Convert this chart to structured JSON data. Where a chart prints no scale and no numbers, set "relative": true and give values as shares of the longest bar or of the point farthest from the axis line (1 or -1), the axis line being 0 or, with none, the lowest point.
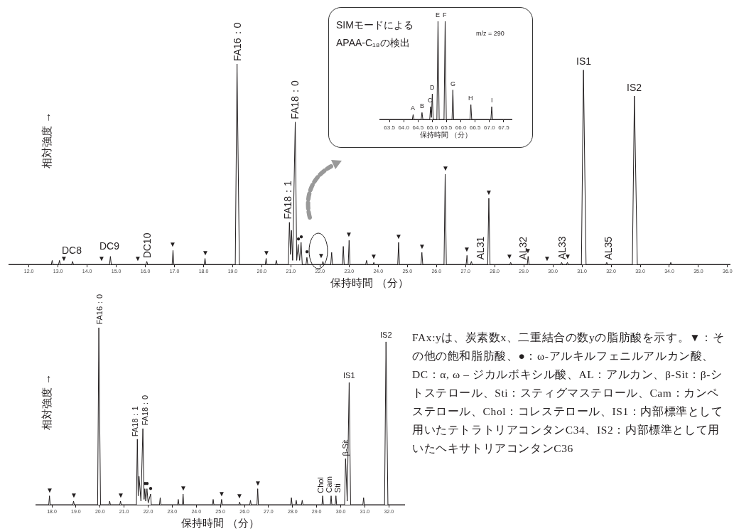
{
  "chart_data": [
    {
      "type": "line",
      "relative": true,
      "ylabel": "相対強度 →",
      "xlabel": "保持時間 （分）",
      "color": "#231f20",
      "xlim": [
        11.3,
        36.1
      ],
      "xticks": [
        {
          "value": 12,
          "label": "12.0"
        },
        {
          "value": 13,
          "label": "13.0"
        },
        {
          "value": 14,
          "label": "14.0"
        },
        {
          "value": 15,
          "label": "15.0"
        },
        {
          "value": 16,
          "label": "16.0"
        },
        {
          "value": 17,
          "label": "17.0"
        },
        {
          "value": 18,
          "label": "18.0"
        },
        {
          "value": 19,
          "label": "19.0"
        },
        {
          "value": 20,
          "label": "20.0"
        },
        {
          "value": 21,
          "label": "21.0"
        },
        {
          "value": 22,
          "label": "22.0"
        },
        {
          "value": 23,
          "label": "23.0"
        },
        {
          "value": 24,
          "label": "24.0"
        },
        {
          "value": 25,
          "label": "25.0"
        },
        {
          "value": 26,
          "label": "26.0"
        },
        {
          "value": 27,
          "label": "27.0"
        },
        {
          "value": 28,
          "label": "28.0"
        },
        {
          "value": 29,
          "label": "29.0"
        },
        {
          "value": 30,
          "label": "30.0"
        },
        {
          "value": 31,
          "label": "31.0"
        },
        {
          "value": 32,
          "label": "32.0"
        },
        {
          "value": 33,
          "label": "33.0"
        },
        {
          "value": 34,
          "label": "34.0"
        },
        {
          "value": 35,
          "label": "35.0"
        },
        {
          "value": 36,
          "label": "36.0"
        }
      ],
      "x": [
        11.3,
        12.77,
        12.8,
        12.83,
        13.02,
        13.05,
        13.08,
        13.47,
        13.5,
        13.53,
        14.77,
        14.8,
        14.83,
        16.02,
        16.05,
        16.08,
        16.92,
        16.95,
        16.98,
        18.02,
        18.05,
        18.08,
        19.09,
        19.15,
        19.23,
        20.12,
        20.15,
        20.18,
        20.47,
        20.5,
        20.53,
        20.91,
        20.95,
        20.985,
        21.02,
        21.06,
        21.15,
        21.2,
        21.25,
        21.3,
        21.35,
        21.39,
        21.52,
        21.55,
        21.58,
        22.07,
        22.1,
        22.13,
        22.37,
        22.4,
        22.43,
        22.77,
        22.8,
        22.83,
        22.97,
        23.0,
        23.03,
        23.57,
        23.6,
        23.63,
        23.82,
        23.85,
        23.88,
        24.67,
        24.7,
        24.73,
        25.47,
        25.5,
        25.53,
        26.26,
        26.3,
        26.34,
        27.02,
        27.05,
        27.08,
        27.17,
        27.2,
        27.23,
        27.76,
        27.8,
        27.84,
        28.52,
        28.55,
        28.58,
        29.12,
        29.15,
        29.18,
        30.27,
        30.3,
        30.33,
        30.47,
        30.5,
        30.53,
        30.98,
        31.05,
        31.14,
        31.82,
        31.85,
        31.88,
        32.73,
        32.8,
        32.9,
        34.02,
        34.05,
        34.08,
        36.1
      ],
      "values": [
        0,
        0,
        0.02,
        0,
        0,
        0.02,
        0,
        0,
        0.015,
        0,
        0,
        0.04,
        0,
        0,
        0.015,
        0,
        0,
        0.07,
        0,
        0,
        0.03,
        0,
        0,
        1,
        0,
        0,
        0.03,
        0,
        0,
        0.02,
        0,
        0,
        0.21,
        0.05,
        0.17,
        0.02,
        0.71,
        0.02,
        0.1,
        0.02,
        0.11,
        0,
        0,
        0.035,
        0,
        0,
        0.015,
        0,
        0,
        0.06,
        0,
        0,
        0.09,
        0,
        0,
        0.12,
        0,
        0,
        0.02,
        0,
        0,
        0.01,
        0,
        0,
        0.11,
        0,
        0,
        0.06,
        0,
        0,
        0.45,
        0,
        0,
        0.045,
        0,
        0,
        0.015,
        0,
        0,
        0.33,
        0,
        0,
        0.01,
        0,
        0,
        0.04,
        0,
        0,
        0.01,
        0,
        0,
        0.01,
        0,
        0,
        0.97,
        0,
        0,
        0.01,
        0,
        0,
        0.84,
        0,
        0,
        0.01,
        0,
        0
      ],
      "annotations": [
        {
          "text": "FA16：0",
          "x": 19.15,
          "y": 1
        },
        {
          "text": "FA18：1",
          "x": 20.9,
          "y": 0.21
        },
        {
          "text": "FA18：0",
          "x": 21.15,
          "y": 0.71
        },
        {
          "text": "DC8",
          "x": 13.47,
          "y": 0.03
        },
        {
          "text": "DC9",
          "x": 14.77,
          "y": 0.05
        },
        {
          "text": "DC10",
          "x": 16.05,
          "y": 0.015
        },
        {
          "text": "AL31",
          "x": 27.5,
          "y": 0.01
        },
        {
          "text": "AL32",
          "x": 28.97,
          "y": 0.01
        },
        {
          "text": "AL33",
          "x": 30.3,
          "y": 0.01
        },
        {
          "text": "AL35",
          "x": 31.9,
          "y": 0.01
        },
        {
          "text": "IS1",
          "x": 31.05,
          "y": 0.97
        },
        {
          "text": "IS2",
          "x": 32.8,
          "y": 0.84
        },
        {
          "text": "▼",
          "x": 13.2,
          "y": 0
        },
        {
          "text": "▼",
          "x": 14.5,
          "y": 0
        },
        {
          "text": "▼",
          "x": 15.75,
          "y": 0
        },
        {
          "text": "▼",
          "x": 16.95,
          "y": 0.07
        },
        {
          "text": "▼",
          "x": 18.05,
          "y": 0.03
        },
        {
          "text": "▼",
          "x": 20.15,
          "y": 0.03
        },
        {
          "text": "▼",
          "x": 22.05,
          "y": 0.015
        },
        {
          "text": "▼",
          "x": 23.0,
          "y": 0.12
        },
        {
          "text": "▼",
          "x": 23.85,
          "y": 0.01
        },
        {
          "text": "▼",
          "x": 24.7,
          "y": 0.11
        },
        {
          "text": "▼",
          "x": 25.5,
          "y": 0.06
        },
        {
          "text": "▼",
          "x": 26.3,
          "y": 0.45
        },
        {
          "text": "▼",
          "x": 27.05,
          "y": 0.045
        },
        {
          "text": "▼",
          "x": 27.8,
          "y": 0.33
        },
        {
          "text": "▼",
          "x": 28.5,
          "y": 0.01
        },
        {
          "text": "▼",
          "x": 29.15,
          "y": 0.04
        },
        {
          "text": "▼",
          "x": 29.8,
          "y": 0
        },
        {
          "text": "▼",
          "x": 30.5,
          "y": 0.01
        },
        {
          "text": "●",
          "x": 21.25,
          "y": 0.1
        },
        {
          "text": "●",
          "x": 21.35,
          "y": 0.11
        },
        {
          "text": "●",
          "x": 21.55,
          "y": 0.035
        }
      ]
    },
    {
      "type": "line",
      "relative": true,
      "title": "SIMモードによるAPAA-C₁₈の検出",
      "xlabel": "保持時間 （分）",
      "color": "#231f20",
      "xlim": [
        63.15,
        67.8
      ],
      "xticks": [
        {
          "value": 63.5,
          "label": "63.5"
        },
        {
          "value": 64,
          "label": "64.0"
        },
        {
          "value": 64.5,
          "label": "64.5"
        },
        {
          "value": 65,
          "label": "65.0"
        },
        {
          "value": 65.5,
          "label": "65.5"
        },
        {
          "value": 66,
          "label": "66.0"
        },
        {
          "value": 66.5,
          "label": "66.5"
        },
        {
          "value": 67,
          "label": "67.0"
        },
        {
          "value": 67.5,
          "label": "67.5"
        }
      ],
      "x": [
        63.15,
        64.3,
        64.33,
        64.36,
        64.61,
        64.64,
        64.67,
        64.91,
        64.94,
        64.97,
        65.0,
        65.03,
        65.16,
        65.2,
        65.24,
        65.41,
        65.45,
        65.49,
        65.69,
        65.72,
        65.75,
        66.32,
        66.35,
        66.38,
        67.05,
        67.08,
        67.11,
        67.8
      ],
      "values": [
        0,
        0,
        0.05,
        0,
        0,
        0.07,
        0,
        0,
        0.13,
        0.02,
        0.26,
        0,
        0,
        1,
        0,
        0,
        1,
        0,
        0,
        0.3,
        0,
        0,
        0.15,
        0,
        0,
        0.13,
        0,
        0
      ],
      "annotations": [
        "m/z = 290",
        {
          "text": "A",
          "x": 64.33,
          "y": 0.05
        },
        {
          "text": "B",
          "x": 64.64,
          "y": 0.07
        },
        {
          "text": "C",
          "x": 64.92,
          "y": 0.13
        },
        {
          "text": "D",
          "x": 65.0,
          "y": 0.26
        },
        {
          "text": "E",
          "x": 65.2,
          "y": 1
        },
        {
          "text": "F",
          "x": 65.45,
          "y": 1
        },
        {
          "text": "G",
          "x": 65.72,
          "y": 0.3
        },
        {
          "text": "H",
          "x": 66.35,
          "y": 0.15
        },
        {
          "text": "I",
          "x": 67.08,
          "y": 0.13
        }
      ]
    },
    {
      "type": "line",
      "relative": true,
      "ylabel": "相対強度 →",
      "xlabel": "保持時間 （分）",
      "color": "#231f20",
      "xlim": [
        17.32,
        32.67
      ],
      "xticks": [
        {
          "value": 18,
          "label": "18.0"
        },
        {
          "value": 19,
          "label": "19.0"
        },
        {
          "value": 20,
          "label": "20.0"
        },
        {
          "value": 21,
          "label": "21.0"
        },
        {
          "value": 22,
          "label": "22.0"
        },
        {
          "value": 23,
          "label": "23.0"
        },
        {
          "value": 24,
          "label": "24.0"
        },
        {
          "value": 25,
          "label": "25.0"
        },
        {
          "value": 26,
          "label": "26.0"
        },
        {
          "value": 27,
          "label": "27.0"
        },
        {
          "value": 28,
          "label": "28.0"
        },
        {
          "value": 29,
          "label": "29.0"
        },
        {
          "value": 30,
          "label": "30.0"
        },
        {
          "value": 31,
          "label": "31.0"
        },
        {
          "value": 32,
          "label": "32.0"
        }
      ],
      "x": [
        17.32,
        17.87,
        17.9,
        17.93,
        18.87,
        18.9,
        18.93,
        19.9,
        19.95,
        20.02,
        20.37,
        20.4,
        20.43,
        20.82,
        20.85,
        20.88,
        21.51,
        21.55,
        21.585,
        21.62,
        21.7,
        21.78,
        21.83,
        21.86,
        21.9,
        21.95,
        22.0,
        22.1,
        22.13,
        22.47,
        22.5,
        22.53,
        23.22,
        23.25,
        23.28,
        23.42,
        23.45,
        23.48,
        24.67,
        24.7,
        24.73,
        25.02,
        25.05,
        25.08,
        25.77,
        25.8,
        25.83,
        26.22,
        26.25,
        26.28,
        26.52,
        26.55,
        26.58,
        27.92,
        27.95,
        27.98,
        28.12,
        28.15,
        28.18,
        28.37,
        28.4,
        28.43,
        29.22,
        29.25,
        29.28,
        29.57,
        29.6,
        29.63,
        29.77,
        29.8,
        29.83,
        30.16,
        30.2,
        30.27,
        30.35,
        30.41,
        30.92,
        30.95,
        30.98,
        31.82,
        31.88,
        31.96,
        32.67
      ],
      "values": [
        0,
        0,
        0.05,
        0,
        0,
        0.02,
        0,
        0,
        1,
        0,
        0,
        0.02,
        0,
        0,
        0.02,
        0,
        0,
        0.37,
        0.05,
        0.16,
        0.02,
        0.43,
        0.03,
        0.09,
        0.02,
        0.09,
        0.01,
        0.06,
        0,
        0,
        0.04,
        0,
        0,
        0.03,
        0,
        0,
        0.06,
        0,
        0,
        0.03,
        0,
        0,
        0.03,
        0,
        0,
        0.015,
        0,
        0,
        0.025,
        0,
        0,
        0.09,
        0,
        0,
        0.04,
        0,
        0,
        0.025,
        0,
        0,
        0.025,
        0,
        0,
        0.05,
        0,
        0,
        0.05,
        0,
        0,
        0.05,
        0,
        0,
        0.26,
        0.02,
        0.69,
        0,
        0,
        0.04,
        0,
        0,
        0.92,
        0,
        0
      ],
      "annotations": [
        {
          "text": "FA16：0",
          "x": 19.95,
          "y": 1
        },
        {
          "text": "FA18：1",
          "x": 21.45,
          "y": 0.37
        },
        {
          "text": "FA18：0",
          "x": 21.87,
          "y": 0.43
        },
        {
          "text": "Chol",
          "x": 29.15,
          "y": 0.05
        },
        {
          "text": "Cam",
          "x": 29.52,
          "y": 0.05
        },
        {
          "text": "Sti",
          "x": 29.87,
          "y": 0.05
        },
        {
          "text": "β-Sit",
          "x": 30.18,
          "y": 0.26
        },
        {
          "text": "IS1",
          "x": 30.35,
          "y": 0.69
        },
        {
          "text": "IS2",
          "x": 31.88,
          "y": 0.92
        },
        {
          "text": "▼",
          "x": 17.9,
          "y": 0.05
        },
        {
          "text": "▼",
          "x": 18.9,
          "y": 0.02
        },
        {
          "text": "▼",
          "x": 20.85,
          "y": 0.02
        },
        {
          "text": "▼",
          "x": 23.45,
          "y": 0.06
        },
        {
          "text": "▼",
          "x": 25.05,
          "y": 0.03
        },
        {
          "text": "▼",
          "x": 25.8,
          "y": 0.015
        },
        {
          "text": "▼",
          "x": 26.55,
          "y": 0.09
        },
        {
          "text": "●",
          "x": 21.86,
          "y": 0.09
        },
        {
          "text": "●",
          "x": 21.95,
          "y": 0.09
        },
        {
          "text": "●",
          "x": 22.1,
          "y": 0.06
        }
      ]
    },
    {
      "type": "other",
      "annotations": [
        "FAx:yは、炭素数x、二重結合の数yの脂肪酸を示す。▼：その他の飽和脂肪酸、●：ω-アルキルフェニルアルカン酸、DC：α, ω – ジカルボキシル酸、AL：アルカン、β-Sit：β-シトステロール、Sti：スティグマステロール、Cam：カンペステロール、Chol：コレステロール、IS1：内部標準として用いたテトラトリアコンタンC34、IS2：内部標準として用いたヘキサトリアコンタンC36"
      ]
    }
  ]
}
